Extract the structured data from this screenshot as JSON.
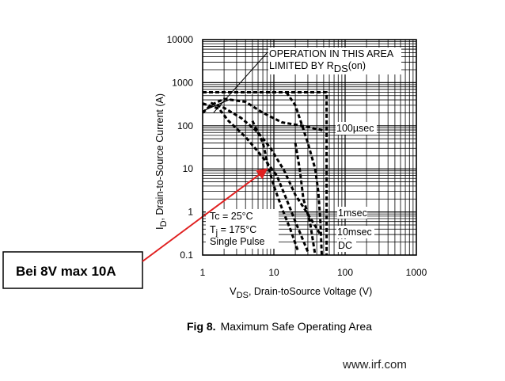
{
  "chart_data": {
    "type": "line",
    "title": "",
    "caption": {
      "fig": "Fig 8.",
      "text": "Maximum Safe Operating Area"
    },
    "xlabel": {
      "symbol": "V",
      "sub": "DS",
      "text": ", Drain-toSource Voltage (V)"
    },
    "ylabel": {
      "symbol": "I",
      "sub": "D",
      "text": ", Drain-to-Source Current (A)"
    },
    "xscale": "log",
    "yscale": "log",
    "xlim": [
      1,
      1000
    ],
    "ylim": [
      0.1,
      10000
    ],
    "xticks": [
      {
        "value": 1,
        "label": "1"
      },
      {
        "value": 10,
        "label": "10"
      },
      {
        "value": 100,
        "label": "100"
      },
      {
        "value": 1000,
        "label": "1000"
      }
    ],
    "yticks": [
      {
        "value": 0.1,
        "label": "0.1"
      },
      {
        "value": 1,
        "label": "1"
      },
      {
        "value": 10,
        "label": "10"
      },
      {
        "value": 100,
        "label": "100"
      },
      {
        "value": 1000,
        "label": "1000"
      },
      {
        "value": 10000,
        "label": "10000"
      }
    ],
    "grid": true,
    "series": [
      {
        "name": "100µsec",
        "style": "dashed",
        "points": [
          [
            1,
            200
          ],
          [
            1.3,
            300
          ],
          [
            2,
            420
          ],
          [
            4,
            360
          ],
          [
            7,
            200
          ],
          [
            13,
            120
          ],
          [
            25,
            100
          ],
          [
            50,
            78
          ]
        ]
      },
      {
        "name": "1msec",
        "style": "dashed",
        "points": [
          [
            1.3,
            340
          ],
          [
            2,
            260
          ],
          [
            3.5,
            150
          ],
          [
            6,
            70
          ],
          [
            9,
            30
          ],
          [
            14,
            9
          ],
          [
            20,
            2.5
          ],
          [
            30,
            0.9
          ],
          [
            45,
            0.3
          ]
        ]
      },
      {
        "name": "10msec",
        "style": "dashed",
        "points": [
          [
            1,
            330
          ],
          [
            1.7,
            250
          ],
          [
            2.3,
            130
          ],
          [
            4,
            55
          ],
          [
            6,
            25
          ],
          [
            8,
            14
          ],
          [
            11,
            7
          ],
          [
            15,
            2
          ],
          [
            20,
            0.6
          ],
          [
            30,
            0.12
          ]
        ]
      },
      {
        "name": "DC",
        "style": "dashed",
        "points": [
          [
            5,
            130
          ],
          [
            7,
            40
          ],
          [
            8.5,
            10
          ],
          [
            10,
            4
          ],
          [
            13,
            1.2
          ],
          [
            17,
            0.4
          ],
          [
            22,
            0.12
          ]
        ]
      },
      {
        "name": "",
        "style": "dashed",
        "points": [
          [
            1,
            600
          ],
          [
            55,
            600
          ],
          [
            55,
            0.06
          ]
        ]
      },
      {
        "name": "",
        "style": "dashed",
        "points": [
          [
            15,
            600
          ],
          [
            20,
            300
          ],
          [
            25,
            100
          ],
          [
            30,
            40
          ],
          [
            38,
            10
          ],
          [
            42,
            3
          ],
          [
            45,
            0.6
          ],
          [
            47,
            0.06
          ]
        ]
      },
      {
        "name": "",
        "style": "dashed",
        "points": [
          [
            20,
            40
          ],
          [
            23,
            10
          ],
          [
            26,
            2
          ],
          [
            32,
            0.6
          ],
          [
            38,
            0.06
          ]
        ]
      },
      {
        "name": "",
        "style": "solid",
        "points": [
          [
            1,
            220
          ],
          [
            2.5,
            420
          ]
        ]
      }
    ],
    "annotations": [
      {
        "id": "rds",
        "line1": "OPERATION IN THIS AREA",
        "line2_prefix": "LIMITED BY R",
        "line2_sub": "DS",
        "line2_suffix": "(on)"
      },
      {
        "id": "t100us",
        "text": "100µsec"
      },
      {
        "id": "t1ms",
        "text": "1msec"
      },
      {
        "id": "t10ms",
        "text": "10msec"
      },
      {
        "id": "tdc",
        "text": "DC"
      }
    ],
    "conditions": {
      "tc": "Tc = 25°C",
      "tj_prefix": "T",
      "tj_sub": "j",
      "tj_suffix": " = 175°C",
      "pulse": "Single Pulse"
    },
    "callout": {
      "text": "Bei 8V max 10A",
      "target": [
        8,
        10
      ]
    }
  },
  "colors": {
    "axis": "#000000",
    "curve": "#000000",
    "callout_arrow": "#e02020"
  },
  "watermark": "www.irf.com"
}
